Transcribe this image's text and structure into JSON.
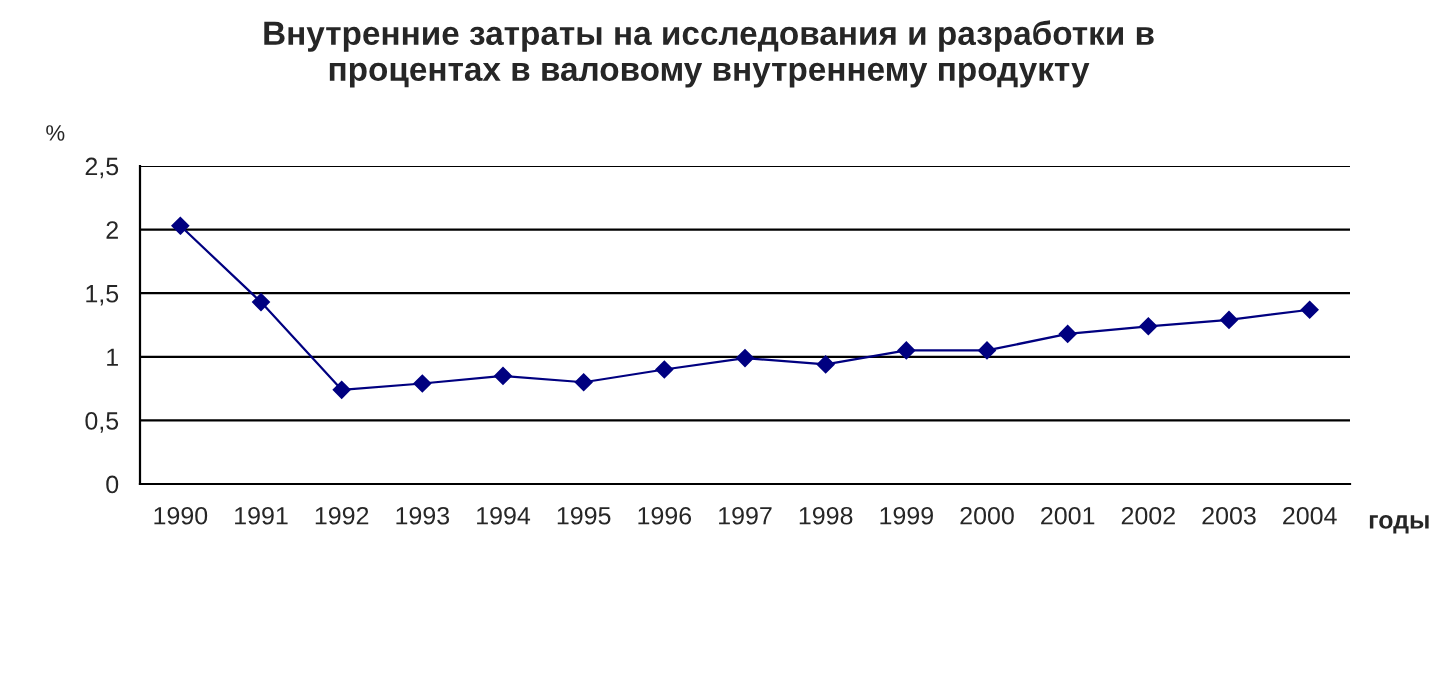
{
  "chart_data": {
    "type": "line",
    "title": "Внутренние затраты на исследования и разработки в\nпроцентах в валовому внутреннему продукту",
    "ylabel": "%",
    "xlabel": "годы",
    "categories": [
      "1990",
      "1991",
      "1992",
      "1993",
      "1994",
      "1995",
      "1996",
      "1997",
      "1998",
      "1999",
      "2000",
      "2001",
      "2002",
      "2003",
      "2004"
    ],
    "series": [
      {
        "color": "#000080",
        "values": [
          2.03,
          1.43,
          0.74,
          0.79,
          0.85,
          0.8,
          0.9,
          0.99,
          0.94,
          1.05,
          1.05,
          1.18,
          1.24,
          1.29,
          1.37
        ]
      }
    ],
    "ylim": [
      0,
      2.5
    ],
    "yticks": [
      0,
      {
        "value": 0.5,
        "label": "0,5"
      },
      1,
      {
        "value": 1.5,
        "label": "1,5"
      },
      2,
      {
        "value": 2.5,
        "label": "2,5"
      }
    ],
    "grid": "y",
    "legend": false,
    "marker": "diamond",
    "line_style": "solid"
  }
}
